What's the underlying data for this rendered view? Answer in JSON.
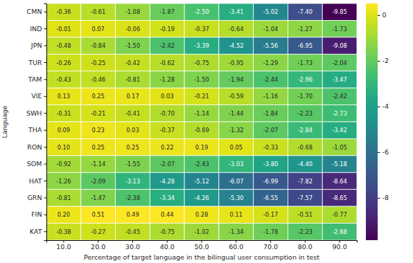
{
  "chart_data": {
    "type": "heatmap",
    "x_label": "Percentage of target language in the bilingual user consumption in test",
    "y_label": "Language",
    "categories": [
      "10.0",
      "20.0",
      "30.0",
      "40.0",
      "50.0",
      "60.0",
      "70.0",
      "80.0",
      "90.0"
    ],
    "y_categories": [
      "CMN",
      "IND",
      "JPN",
      "TUR",
      "TAM",
      "VIE",
      "SWH",
      "THA",
      "RON",
      "SOM",
      "HAT",
      "GRN",
      "FIN",
      "KAT"
    ],
    "values": [
      [
        -0.36,
        -0.61,
        -1.08,
        -1.87,
        -2.5,
        -3.41,
        -5.02,
        -7.4,
        -9.85
      ],
      [
        -0.01,
        0.07,
        -0.06,
        -0.19,
        -0.37,
        -0.64,
        -1.04,
        -1.27,
        -1.73
      ],
      [
        -0.48,
        -0.84,
        -1.5,
        -2.42,
        -3.39,
        -4.52,
        -5.56,
        -6.95,
        -9.08
      ],
      [
        -0.26,
        -0.25,
        -0.42,
        -0.62,
        -0.75,
        -0.95,
        -1.29,
        -1.73,
        -2.04
      ],
      [
        -0.43,
        -0.46,
        -0.81,
        -1.28,
        -1.5,
        -1.94,
        -2.44,
        -2.96,
        -3.47
      ],
      [
        0.13,
        0.25,
        0.17,
        0.03,
        -0.21,
        -0.59,
        -1.16,
        -1.7,
        -2.42
      ],
      [
        -0.31,
        -0.21,
        -0.41,
        -0.7,
        -1.14,
        -1.44,
        -1.84,
        -2.23,
        -2.73
      ],
      [
        0.09,
        0.23,
        0.03,
        -0.37,
        -0.69,
        -1.32,
        -2.07,
        -2.84,
        -3.42
      ],
      [
        0.1,
        0.25,
        0.25,
        0.22,
        0.19,
        0.05,
        -0.33,
        -0.68,
        -1.05
      ],
      [
        -0.92,
        -1.14,
        -1.55,
        -2.07,
        -2.43,
        -3.03,
        -3.8,
        -4.4,
        -5.18
      ],
      [
        -1.26,
        -2.09,
        -3.13,
        -4.28,
        -5.12,
        -6.07,
        -6.99,
        -7.82,
        -8.64
      ],
      [
        -0.81,
        -1.47,
        -2.38,
        -3.34,
        -4.26,
        -5.3,
        -6.55,
        -7.57,
        -8.65
      ],
      [
        0.2,
        0.51,
        0.49,
        0.44,
        0.28,
        0.11,
        -0.17,
        -0.51,
        -0.77
      ],
      [
        -0.38,
        -0.27,
        -0.45,
        -0.75,
        -1.02,
        -1.34,
        -1.78,
        -2.23,
        -2.68
      ]
    ],
    "value_labels": [
      [
        "-0.36",
        "-0.61",
        "-1.08",
        "-1.87",
        "-2.50",
        "-3.41",
        "-5.02",
        "-7.40",
        "-9.85"
      ],
      [
        "-0.01",
        "0.07",
        "-0.06",
        "-0.19",
        "-0.37",
        "-0.64",
        "-1.04",
        "-1.27",
        "-1.73"
      ],
      [
        "-0.48",
        "-0.84",
        "-1.50",
        "-2.42",
        "-3.39",
        "-4.52",
        "-5.56",
        "-6.95",
        "-9.08"
      ],
      [
        "-0.26",
        "-0.25",
        "-0.42",
        "-0.62",
        "-0.75",
        "-0.95",
        "-1.29",
        "-1.73",
        "-2.04"
      ],
      [
        "-0.43",
        "-0.46",
        "-0.81",
        "-1.28",
        "-1.50",
        "-1.94",
        "-2.44",
        "-2.96",
        "-3.47"
      ],
      [
        "0.13",
        "0.25",
        "0.17",
        "0.03",
        "-0.21",
        "-0.59",
        "-1.16",
        "-1.70",
        "-2.42"
      ],
      [
        "-0.31",
        "-0.21",
        "-0.41",
        "-0.70",
        "-1.14",
        "-1.44",
        "-1.84",
        "-2.23",
        "-2.73"
      ],
      [
        "0.09",
        "0.23",
        "0.03",
        "-0.37",
        "-0.69",
        "-1.32",
        "-2.07",
        "-2.84",
        "-3.42"
      ],
      [
        "0.10",
        "0.25",
        "0.25",
        "0.22",
        "0.19",
        "0.05",
        "-0.33",
        "-0.68",
        "-1.05"
      ],
      [
        "-0.92",
        "-1.14",
        "-1.55",
        "-2.07",
        "-2.43",
        "-3.03",
        "-3.80",
        "-4.40",
        "-5.18"
      ],
      [
        "-1.26",
        "-2.09",
        "-3.13",
        "-4.28",
        "-5.12",
        "-6.07",
        "-6.99",
        "-7.82",
        "-8.64"
      ],
      [
        "-0.81",
        "-1.47",
        "-2.38",
        "-3.34",
        "-4.26",
        "-5.30",
        "-6.55",
        "-7.57",
        "-8.65"
      ],
      [
        "0.20",
        "0.51",
        "0.49",
        "0.44",
        "0.28",
        "0.11",
        "-0.17",
        "-0.51",
        "-0.77"
      ],
      [
        "-0.38",
        "-0.27",
        "-0.45",
        "-0.75",
        "-1.02",
        "-1.34",
        "-1.78",
        "-2.23",
        "-2.68"
      ]
    ],
    "data_labels": true,
    "color": "viridis",
    "colorbar_range": [
      -9.85,
      0.51
    ],
    "colorbar_ticks": [
      -8,
      -6,
      -4,
      -2,
      0
    ]
  }
}
